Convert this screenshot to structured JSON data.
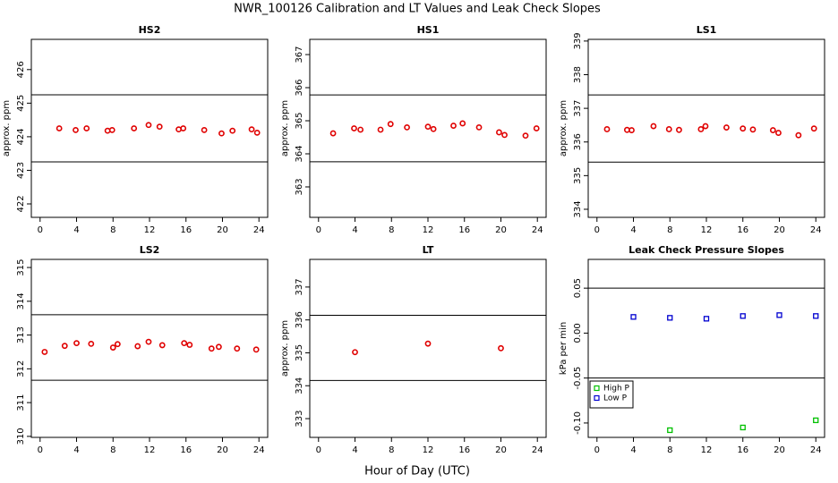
{
  "title": "NWR_100126  Calibration and LT Values and Leak Check Slopes",
  "xlabel": "Hour of Day (UTC)",
  "chart_data": [
    {
      "type": "scatter",
      "title": "HS2",
      "ylabel": "approx. ppm",
      "xlim": [
        -0.96,
        24.96
      ],
      "xticks": [
        0,
        4,
        8,
        12,
        16,
        20,
        24
      ],
      "ylim": [
        421.6,
        426.9
      ],
      "yticks": [
        422,
        423,
        424,
        425,
        426
      ],
      "hlines": [
        425.25,
        423.25
      ],
      "series": [
        {
          "color": "#e00000",
          "marker": "circle",
          "x": [
            2.1,
            3.9,
            5.1,
            7.4,
            7.9,
            10.3,
            11.9,
            13.1,
            15.2,
            15.7,
            18.0,
            19.9,
            21.1,
            23.2,
            23.8
          ],
          "values": [
            424.25,
            424.2,
            424.25,
            424.18,
            424.2,
            424.25,
            424.35,
            424.3,
            424.22,
            424.25,
            424.2,
            424.1,
            424.18,
            424.22,
            424.12
          ]
        }
      ]
    },
    {
      "type": "scatter",
      "title": "HS1",
      "ylabel": "approx. ppm",
      "xlim": [
        -0.96,
        24.96
      ],
      "xticks": [
        0,
        4,
        8,
        12,
        16,
        20,
        24
      ],
      "ylim": [
        362.08,
        367.46
      ],
      "yticks": [
        363,
        364,
        365,
        366,
        367
      ],
      "hlines": [
        365.78,
        363.76
      ],
      "series": [
        {
          "color": "#e00000",
          "marker": "circle",
          "x": [
            1.6,
            3.9,
            4.6,
            6.8,
            7.9,
            9.7,
            12.0,
            12.6,
            14.8,
            15.8,
            17.6,
            19.8,
            20.4,
            22.7,
            23.9
          ],
          "values": [
            364.62,
            364.77,
            364.73,
            364.73,
            364.9,
            364.8,
            364.82,
            364.75,
            364.85,
            364.92,
            364.8,
            364.65,
            364.57,
            364.55,
            364.77
          ]
        }
      ]
    },
    {
      "type": "scatter",
      "title": "LS1",
      "ylabel": "approx. ppm",
      "xlim": [
        -0.96,
        24.96
      ],
      "xticks": [
        0,
        4,
        8,
        12,
        16,
        20,
        24
      ],
      "ylim": [
        333.76,
        339.05
      ],
      "yticks": [
        334,
        335,
        336,
        337,
        338,
        339
      ],
      "hlines": [
        337.4,
        335.4
      ],
      "series": [
        {
          "color": "#e00000",
          "marker": "circle",
          "x": [
            1.1,
            3.3,
            3.8,
            6.2,
            7.9,
            9.0,
            11.4,
            11.9,
            14.2,
            16.0,
            17.1,
            19.3,
            19.9,
            22.1,
            23.8
          ],
          "values": [
            336.38,
            336.36,
            336.35,
            336.47,
            336.38,
            336.36,
            336.38,
            336.47,
            336.43,
            336.4,
            336.37,
            336.35,
            336.27,
            336.2,
            336.4
          ]
        }
      ]
    },
    {
      "type": "scatter",
      "title": "LS2",
      "xlim": [
        -0.96,
        24.96
      ],
      "xticks": [
        0,
        4,
        8,
        12,
        16,
        20,
        24
      ],
      "ylim": [
        309.97,
        315.24
      ],
      "yticks": [
        310,
        311,
        312,
        313,
        314,
        315
      ],
      "hlines": [
        313.6,
        311.66
      ],
      "series": [
        {
          "color": "#e00000",
          "marker": "circle",
          "x": [
            0.5,
            2.7,
            4.0,
            5.6,
            8.0,
            8.5,
            10.7,
            11.9,
            13.4,
            15.8,
            16.4,
            18.8,
            19.6,
            21.6,
            23.7
          ],
          "values": [
            312.5,
            312.68,
            312.76,
            312.74,
            312.63,
            312.73,
            312.67,
            312.8,
            312.7,
            312.76,
            312.71,
            312.6,
            312.65,
            312.6,
            312.57
          ]
        }
      ]
    },
    {
      "type": "scatter",
      "title": "LT",
      "ylabel": "approx. ppm",
      "xlim": [
        -0.96,
        24.96
      ],
      "xticks": [
        0,
        4,
        8,
        12,
        16,
        20,
        24
      ],
      "ylim": [
        332.43,
        337.84
      ],
      "yticks": [
        333,
        334,
        335,
        336,
        337
      ],
      "hlines": [
        336.14,
        334.16
      ],
      "series": [
        {
          "color": "#e00000",
          "marker": "circle",
          "x": [
            4,
            12,
            20
          ],
          "values": [
            335.02,
            335.28,
            335.14
          ]
        }
      ]
    },
    {
      "type": "scatter",
      "title": "Leak Check Pressure Slopes",
      "ylabel": "kPa per min",
      "xlim": [
        -0.96,
        24.96
      ],
      "xticks": [
        0,
        4,
        8,
        12,
        16,
        20,
        24
      ],
      "ylim": [
        -0.116,
        0.082
      ],
      "yticks": [
        {
          "value": -0.1,
          "label": "-0.10"
        },
        -0.05,
        {
          "value": 0,
          "label": "0.00"
        },
        0.05
      ],
      "hlines": [
        0.05,
        -0.05
      ],
      "legend": "bottom-left",
      "series": [
        {
          "name": "High P",
          "color": "#00c000",
          "marker": "square",
          "x": [
            8,
            16,
            24
          ],
          "values": [
            -0.108,
            -0.105,
            -0.097
          ]
        },
        {
          "name": "Low P",
          "color": "#0000d0",
          "marker": "square",
          "x": [
            4,
            8,
            12,
            16,
            20,
            24
          ],
          "values": [
            0.018,
            0.017,
            0.016,
            0.019,
            0.02,
            0.019
          ]
        }
      ]
    }
  ]
}
